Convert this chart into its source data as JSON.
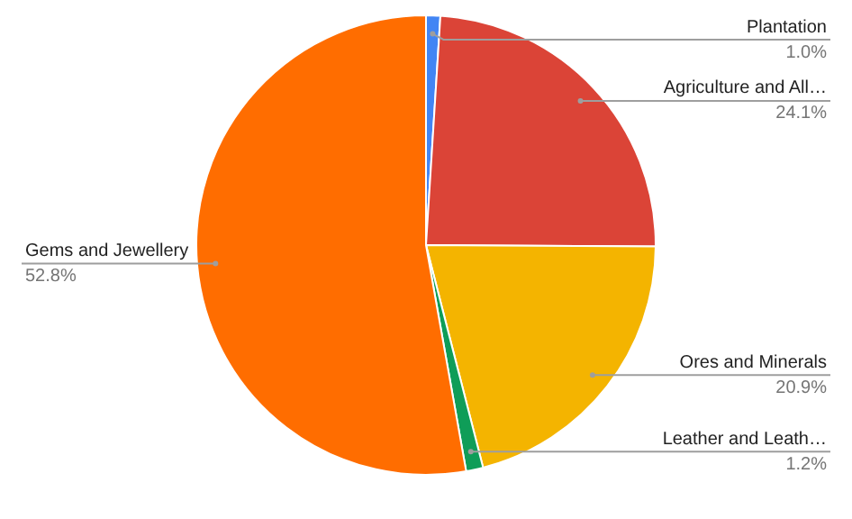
{
  "chart_data": {
    "type": "pie",
    "categories": [
      "Plantation",
      "Agriculture and All…",
      "Ores and Minerals",
      "Leather and Leath…",
      "Gems and Jewellery"
    ],
    "values": [
      1.0,
      24.1,
      20.9,
      1.2,
      52.8
    ],
    "value_labels": [
      "1.0%",
      "24.1%",
      "20.9%",
      "1.2%",
      "52.8%"
    ],
    "colors": [
      "#4285f4",
      "#db4437",
      "#f4b400",
      "#0f9d58",
      "#ff6d00"
    ],
    "legend": false
  }
}
